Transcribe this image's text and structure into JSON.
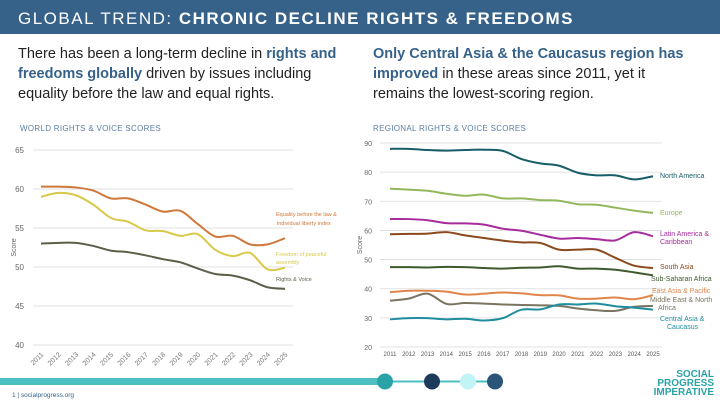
{
  "header": {
    "title_light": "GLOBAL TREND: ",
    "title_bold": "CHRONIC DECLINE RIGHTS & FREEDOMS"
  },
  "left_text": {
    "p1": "There has been a long-term decline in ",
    "hl": "rights and freedoms globally",
    "p2": " driven by issues including equality before the law and equal rights."
  },
  "right_text": {
    "hl": "Only Central Asia & the Caucasus region has improved",
    "p2": " in these areas since 2011, yet it remains the lowest-scoring region."
  },
  "footer": {
    "page": "1 | socialprogress.org",
    "logo": [
      "SOCIAL",
      "PROGRESS",
      "IMPERATIVE"
    ]
  },
  "colors": {
    "header": "#36628a",
    "accent": "#4bbfc2"
  },
  "chart_data": [
    {
      "type": "line",
      "title": "WORLD RIGHTS & VOICE SCORES",
      "ylabel": "Score",
      "ylim": [
        40,
        65
      ],
      "yticks": [
        40,
        45,
        50,
        55,
        60,
        65
      ],
      "grid": true,
      "x_tick_rotation": "diagonal",
      "x": [
        2011,
        2012,
        2013,
        2014,
        2015,
        2016,
        2017,
        2018,
        2019,
        2020,
        2021,
        2022,
        2023,
        2024,
        2025
      ],
      "series": [
        {
          "name": "Equality before the law & individual liberty index",
          "color": "#d0773a",
          "values": [
            60.3,
            60.3,
            60.2,
            59.8,
            58.8,
            58.8,
            58.0,
            57.1,
            57.2,
            55.5,
            53.9,
            54.0,
            52.9,
            52.9,
            53.7
          ]
        },
        {
          "name": "Freedom of peaceful assembly",
          "color": "#d8c94a",
          "values": [
            59.0,
            59.5,
            59.2,
            58.0,
            56.3,
            55.8,
            54.7,
            54.6,
            54.0,
            54.2,
            52.2,
            51.4,
            51.8,
            49.7,
            49.9
          ]
        },
        {
          "name": "Rights & Voice",
          "color": "#5d5f48",
          "values": [
            53.0,
            53.1,
            53.1,
            52.7,
            52.1,
            51.9,
            51.5,
            51.0,
            50.6,
            49.8,
            49.1,
            48.9,
            48.3,
            47.4,
            47.2
          ]
        }
      ]
    },
    {
      "type": "line",
      "title": "REGIONAL RIGHTS & VOICE SCORES",
      "ylabel": "Score",
      "ylim": [
        20,
        90
      ],
      "yticks": [
        20,
        30,
        40,
        50,
        60,
        70,
        80,
        90
      ],
      "grid": true,
      "x": [
        2011,
        2012,
        2013,
        2014,
        2015,
        2016,
        2017,
        2018,
        2019,
        2020,
        2021,
        2022,
        2023,
        2024,
        2025
      ],
      "series": [
        {
          "name": "North America",
          "color": "#175c66",
          "values": [
            88,
            88,
            87.6,
            87.4,
            87.6,
            87.7,
            87.3,
            84.5,
            83.0,
            82.2,
            79.8,
            78.9,
            78.9,
            77.5,
            78.6
          ]
        },
        {
          "name": "Europe",
          "color": "#93b85c",
          "values": [
            74.3,
            74.0,
            73.6,
            72.6,
            71.9,
            72.3,
            71.0,
            71.0,
            70.4,
            70.2,
            69.0,
            68.8,
            67.8,
            66.8,
            66.0
          ]
        },
        {
          "name": "Latin America & Caribbean",
          "color": "#a62b9c",
          "values": [
            63.9,
            63.9,
            63.5,
            62.5,
            62.4,
            62.0,
            60.6,
            59.9,
            58.5,
            57.2,
            57.4,
            57.0,
            56.6,
            59.4,
            58.0
          ]
        },
        {
          "name": "South Asia",
          "color": "#8b4a1e",
          "values": [
            58.7,
            58.8,
            58.9,
            59.4,
            58.3,
            57.4,
            56.5,
            55.9,
            55.7,
            53.4,
            53.4,
            53.4,
            50.6,
            47.9,
            47.1
          ]
        },
        {
          "name": "Sub-Saharan Africa",
          "color": "#40592c",
          "values": [
            47.4,
            47.4,
            47.3,
            47.5,
            47.4,
            47.1,
            46.9,
            47.2,
            47.3,
            47.7,
            46.9,
            46.9,
            46.5,
            45.6,
            44.6
          ]
        },
        {
          "name": "East Asia & Pacific",
          "color": "#e0854a",
          "values": [
            38.8,
            39.3,
            39.3,
            39.0,
            38.0,
            38.3,
            38.7,
            38.4,
            37.8,
            37.7,
            36.6,
            36.6,
            37.0,
            36.4,
            37.8
          ]
        },
        {
          "name": "Middle East & North Africa",
          "color": "#7a7560",
          "values": [
            35.9,
            36.6,
            38.3,
            34.8,
            35.1,
            34.9,
            34.6,
            34.4,
            34.3,
            34.1,
            33.2,
            32.6,
            32.4,
            33.8,
            34.1
          ]
        },
        {
          "name": "Central Asia & Caucasus",
          "color": "#1f8d9e",
          "values": [
            29.5,
            29.9,
            29.9,
            29.5,
            29.7,
            29.1,
            29.9,
            32.8,
            32.9,
            34.6,
            34.6,
            34.9,
            34.0,
            33.5,
            32.8
          ]
        }
      ]
    }
  ]
}
